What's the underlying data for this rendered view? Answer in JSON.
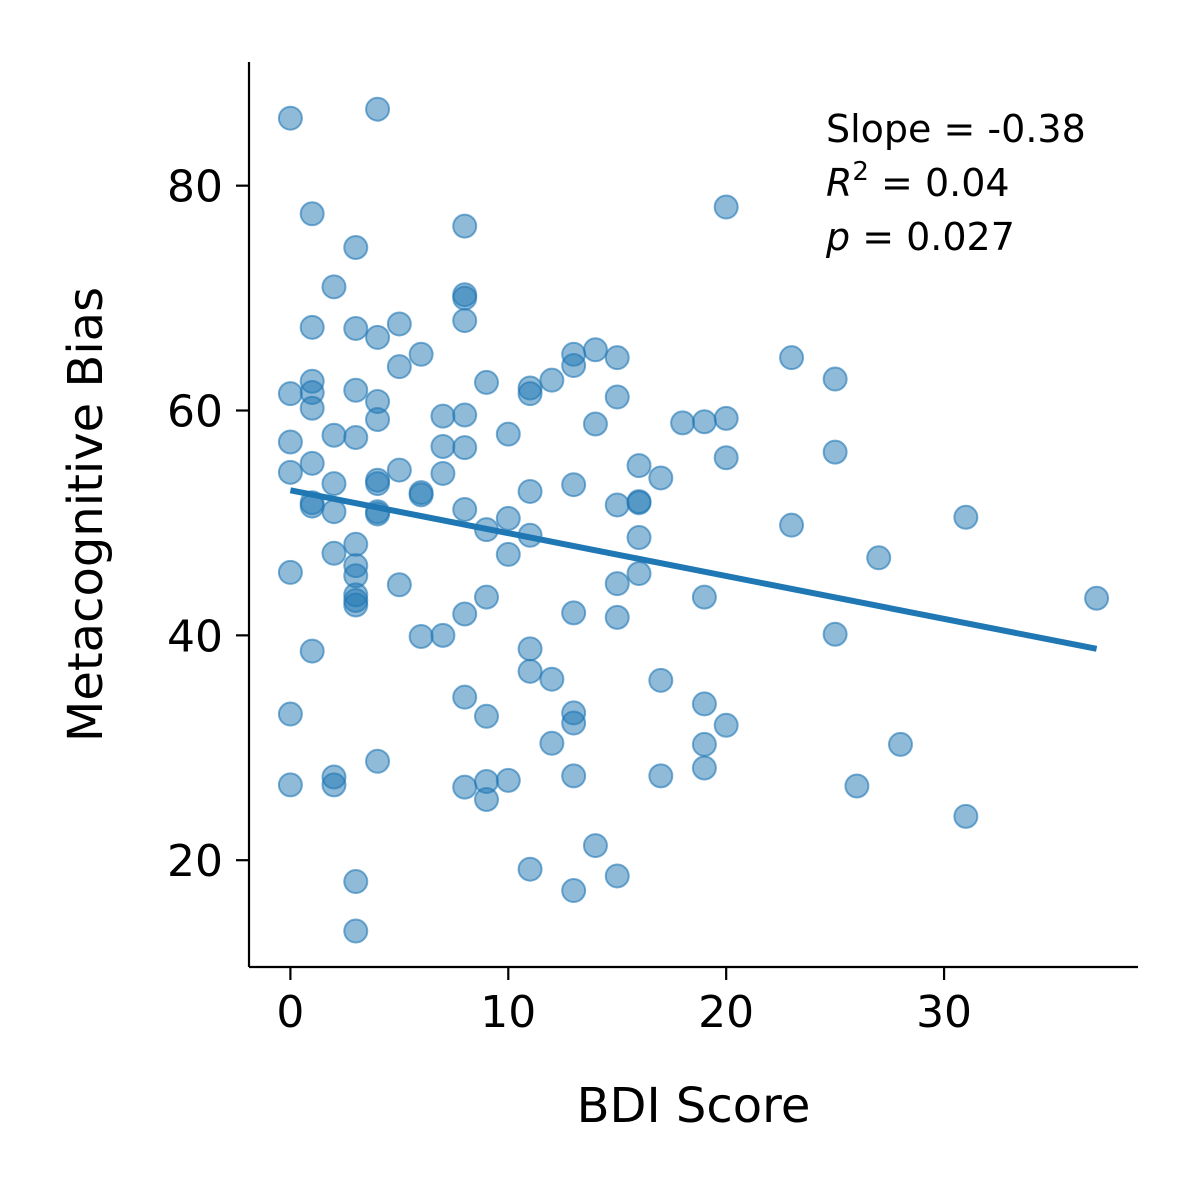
{
  "chart_data": {
    "type": "scatter",
    "title": "",
    "xlabel": "BDI Score",
    "ylabel": "Metacognitive Bias",
    "xlim": [
      -1.9,
      38.9
    ],
    "ylim": [
      10.5,
      91
    ],
    "xticks": [
      0,
      10,
      20,
      30
    ],
    "yticks": [
      20,
      40,
      60,
      80
    ],
    "grid": false,
    "point_color": "#1f77b4",
    "line_color": "#1f77b4",
    "stats": {
      "slope_label": "Slope = -0.38",
      "r2_prefix": "R",
      "r2_sup": "2",
      "r2_rest": " = 0.04",
      "p_prefix": "p",
      "p_rest": " = 0.027"
    },
    "regression": {
      "x": [
        0,
        37
      ],
      "y": [
        52.9,
        38.8
      ]
    },
    "points": [
      [
        0,
        86
      ],
      [
        0,
        61.5
      ],
      [
        0,
        57.2
      ],
      [
        0,
        54.5
      ],
      [
        0,
        45.6
      ],
      [
        0,
        33
      ],
      [
        0,
        26.7
      ],
      [
        1,
        77.5
      ],
      [
        1,
        67.4
      ],
      [
        1,
        62.6
      ],
      [
        1,
        61.6
      ],
      [
        1,
        60.2
      ],
      [
        1,
        55.3
      ],
      [
        1,
        51.5
      ],
      [
        1,
        51.8
      ],
      [
        1,
        38.6
      ],
      [
        2,
        71
      ],
      [
        2,
        57.8
      ],
      [
        2,
        53.5
      ],
      [
        2,
        51
      ],
      [
        2,
        47.3
      ],
      [
        2,
        27.4
      ],
      [
        2,
        26.7
      ],
      [
        3,
        74.5
      ],
      [
        3,
        67.3
      ],
      [
        3,
        61.8
      ],
      [
        3,
        57.6
      ],
      [
        3,
        48.1
      ],
      [
        3,
        46.2
      ],
      [
        3,
        45.3
      ],
      [
        3,
        43.6
      ],
      [
        3,
        43.1
      ],
      [
        3,
        42.7
      ],
      [
        3,
        18.1
      ],
      [
        3,
        13.7
      ],
      [
        4,
        86.8
      ],
      [
        4,
        66.5
      ],
      [
        4,
        60.8
      ],
      [
        4,
        59.2
      ],
      [
        4,
        53.8
      ],
      [
        4,
        53.5
      ],
      [
        4,
        51
      ],
      [
        4,
        50.8
      ],
      [
        4,
        28.8
      ],
      [
        5,
        67.7
      ],
      [
        5,
        63.9
      ],
      [
        5,
        54.7
      ],
      [
        5,
        44.5
      ],
      [
        6,
        65
      ],
      [
        6,
        52.7
      ],
      [
        6,
        52.5
      ],
      [
        6,
        39.9
      ],
      [
        7,
        59.5
      ],
      [
        7,
        56.8
      ],
      [
        7,
        54.4
      ],
      [
        7,
        40
      ],
      [
        8,
        76.4
      ],
      [
        8,
        70.3
      ],
      [
        8,
        70
      ],
      [
        8,
        68
      ],
      [
        8,
        59.6
      ],
      [
        8,
        56.7
      ],
      [
        8,
        51.2
      ],
      [
        8,
        41.9
      ],
      [
        8,
        34.5
      ],
      [
        8,
        26.5
      ],
      [
        9,
        62.5
      ],
      [
        9,
        49.4
      ],
      [
        9,
        43.4
      ],
      [
        9,
        32.8
      ],
      [
        9,
        27
      ],
      [
        9,
        25.4
      ],
      [
        10,
        57.9
      ],
      [
        10,
        50.4
      ],
      [
        10,
        47.2
      ],
      [
        10,
        27.1
      ],
      [
        11,
        62
      ],
      [
        11,
        61.5
      ],
      [
        11,
        52.8
      ],
      [
        11,
        48.9
      ],
      [
        11,
        38.8
      ],
      [
        11,
        36.8
      ],
      [
        11,
        19.2
      ],
      [
        12,
        62.7
      ],
      [
        12,
        36.1
      ],
      [
        12,
        30.4
      ],
      [
        13,
        65
      ],
      [
        13,
        64
      ],
      [
        13,
        53.4
      ],
      [
        13,
        42
      ],
      [
        13,
        33.1
      ],
      [
        13,
        32.2
      ],
      [
        13,
        27.5
      ],
      [
        13,
        17.3
      ],
      [
        14,
        65.4
      ],
      [
        14,
        58.8
      ],
      [
        14,
        21.3
      ],
      [
        15,
        64.7
      ],
      [
        15,
        61.2
      ],
      [
        15,
        51.6
      ],
      [
        15,
        44.6
      ],
      [
        15,
        41.6
      ],
      [
        15,
        18.6
      ],
      [
        16,
        55.1
      ],
      [
        16,
        51.8
      ],
      [
        16,
        51.9
      ],
      [
        16,
        48.7
      ],
      [
        16,
        45.5
      ],
      [
        17,
        54
      ],
      [
        17,
        36
      ],
      [
        17,
        27.5
      ],
      [
        18,
        58.9
      ],
      [
        19,
        59
      ],
      [
        19,
        43.4
      ],
      [
        19,
        33.9
      ],
      [
        19,
        30.3
      ],
      [
        19,
        28.2
      ],
      [
        20,
        78.1
      ],
      [
        20,
        59.3
      ],
      [
        20,
        55.8
      ],
      [
        20,
        32
      ],
      [
        23,
        64.7
      ],
      [
        23,
        49.8
      ],
      [
        25,
        62.8
      ],
      [
        25,
        56.3
      ],
      [
        25,
        40.1
      ],
      [
        26,
        26.6
      ],
      [
        27,
        46.9
      ],
      [
        28,
        30.3
      ],
      [
        31,
        50.5
      ],
      [
        31,
        23.9
      ],
      [
        37,
        43.3
      ]
    ]
  }
}
